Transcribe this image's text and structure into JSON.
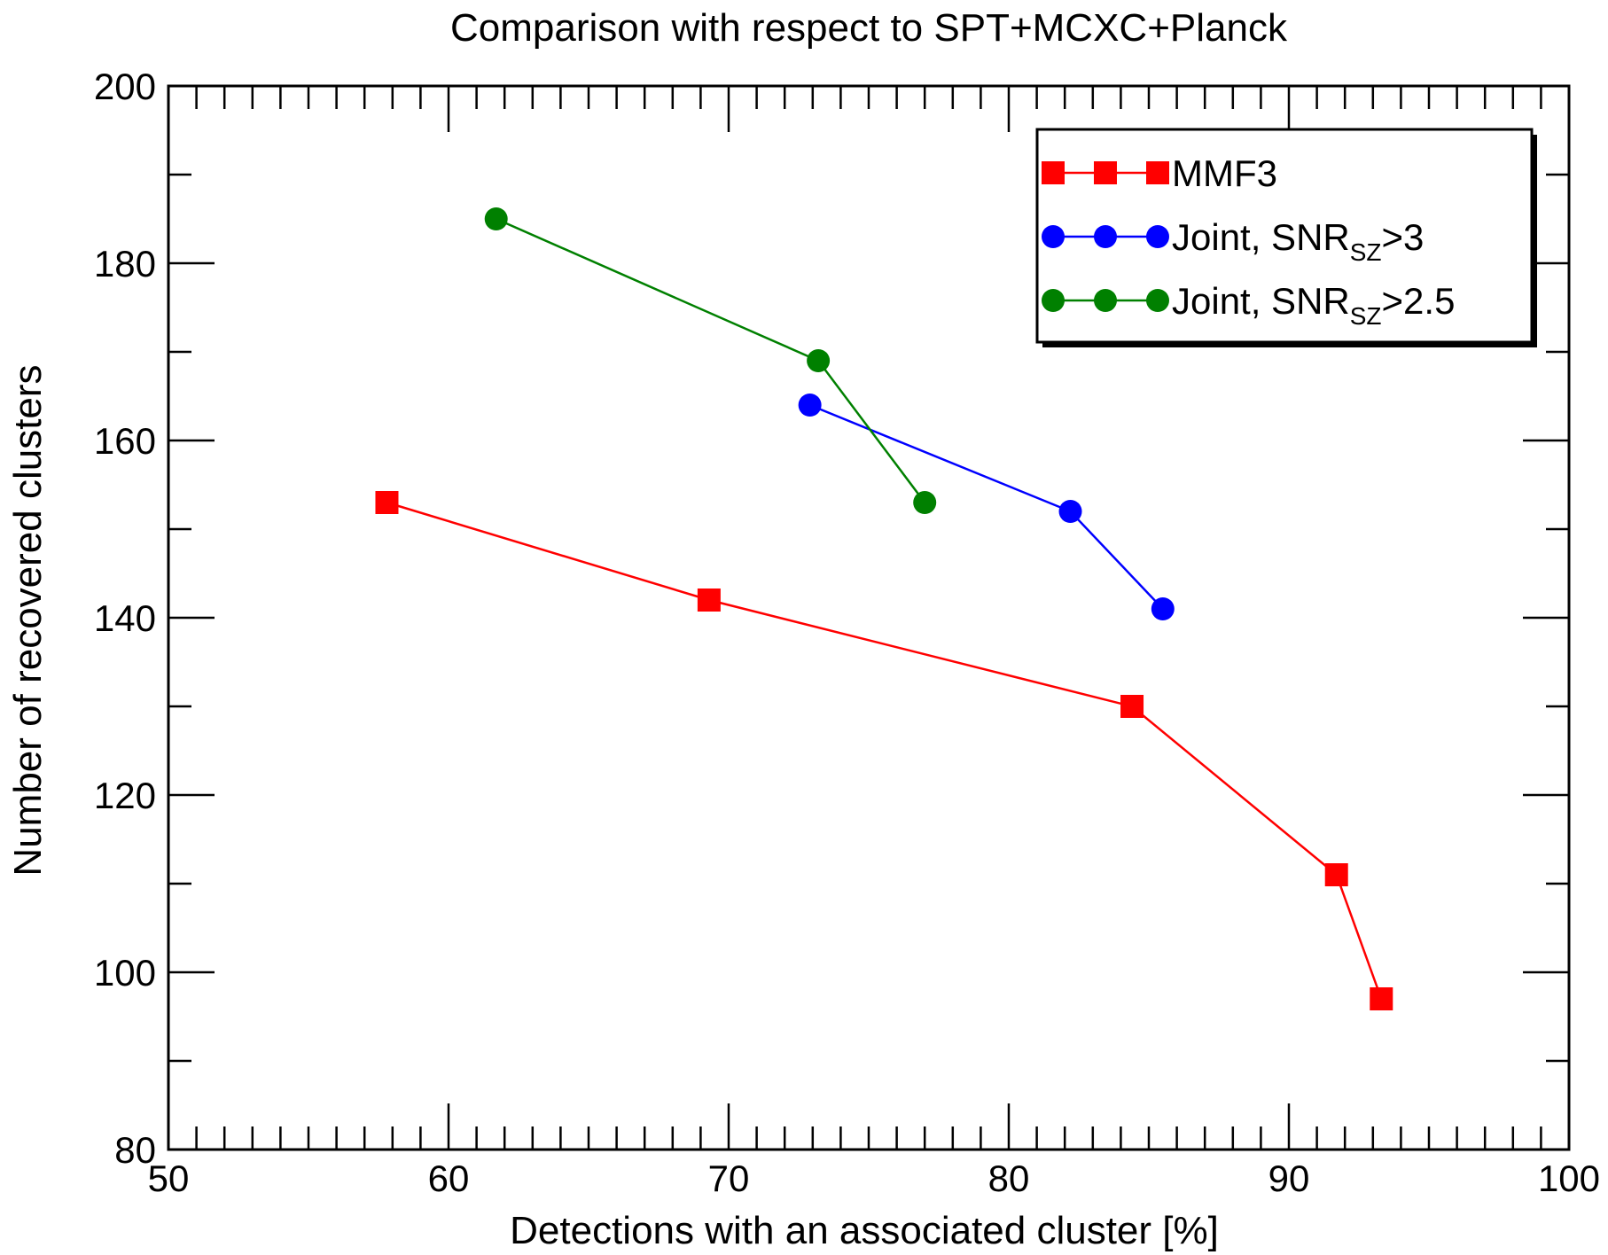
{
  "chart_data": {
    "type": "line",
    "title": "Comparison with respect to SPT+MCXC+Planck",
    "xlabel": "Detections with an associated cluster [%]",
    "ylabel": "Number of recovered clusters",
    "xlim": [
      50,
      100
    ],
    "ylim": [
      80,
      200
    ],
    "x_ticks": [
      "50",
      "60",
      "70",
      "80",
      "90",
      "100"
    ],
    "y_ticks": [
      "80",
      "100",
      "120",
      "140",
      "160",
      "180",
      "200"
    ],
    "legend_position": "top-right",
    "series": [
      {
        "name": "MMF3",
        "legend": {
          "main": "MMF3",
          "sub": "",
          "tail": ""
        },
        "color": "#ff0000",
        "marker": "square",
        "x": [
          57.8,
          69.3,
          84.4,
          91.7,
          93.3
        ],
        "y": [
          153,
          142,
          130,
          111,
          97
        ]
      },
      {
        "name": "Joint, SNR_SZ>3",
        "legend": {
          "main": "Joint, SNR",
          "sub": "SZ",
          "tail": ">3"
        },
        "color": "#0000ff",
        "marker": "circle",
        "x": [
          72.9,
          82.2,
          85.5
        ],
        "y": [
          164,
          152,
          141
        ]
      },
      {
        "name": "Joint, SNR_SZ>2.5",
        "legend": {
          "main": "Joint, SNR",
          "sub": "SZ",
          "tail": ">2.5"
        },
        "color": "#008000",
        "marker": "circle",
        "x": [
          61.7,
          73.2,
          77.0
        ],
        "y": [
          185,
          169,
          153
        ]
      }
    ]
  }
}
